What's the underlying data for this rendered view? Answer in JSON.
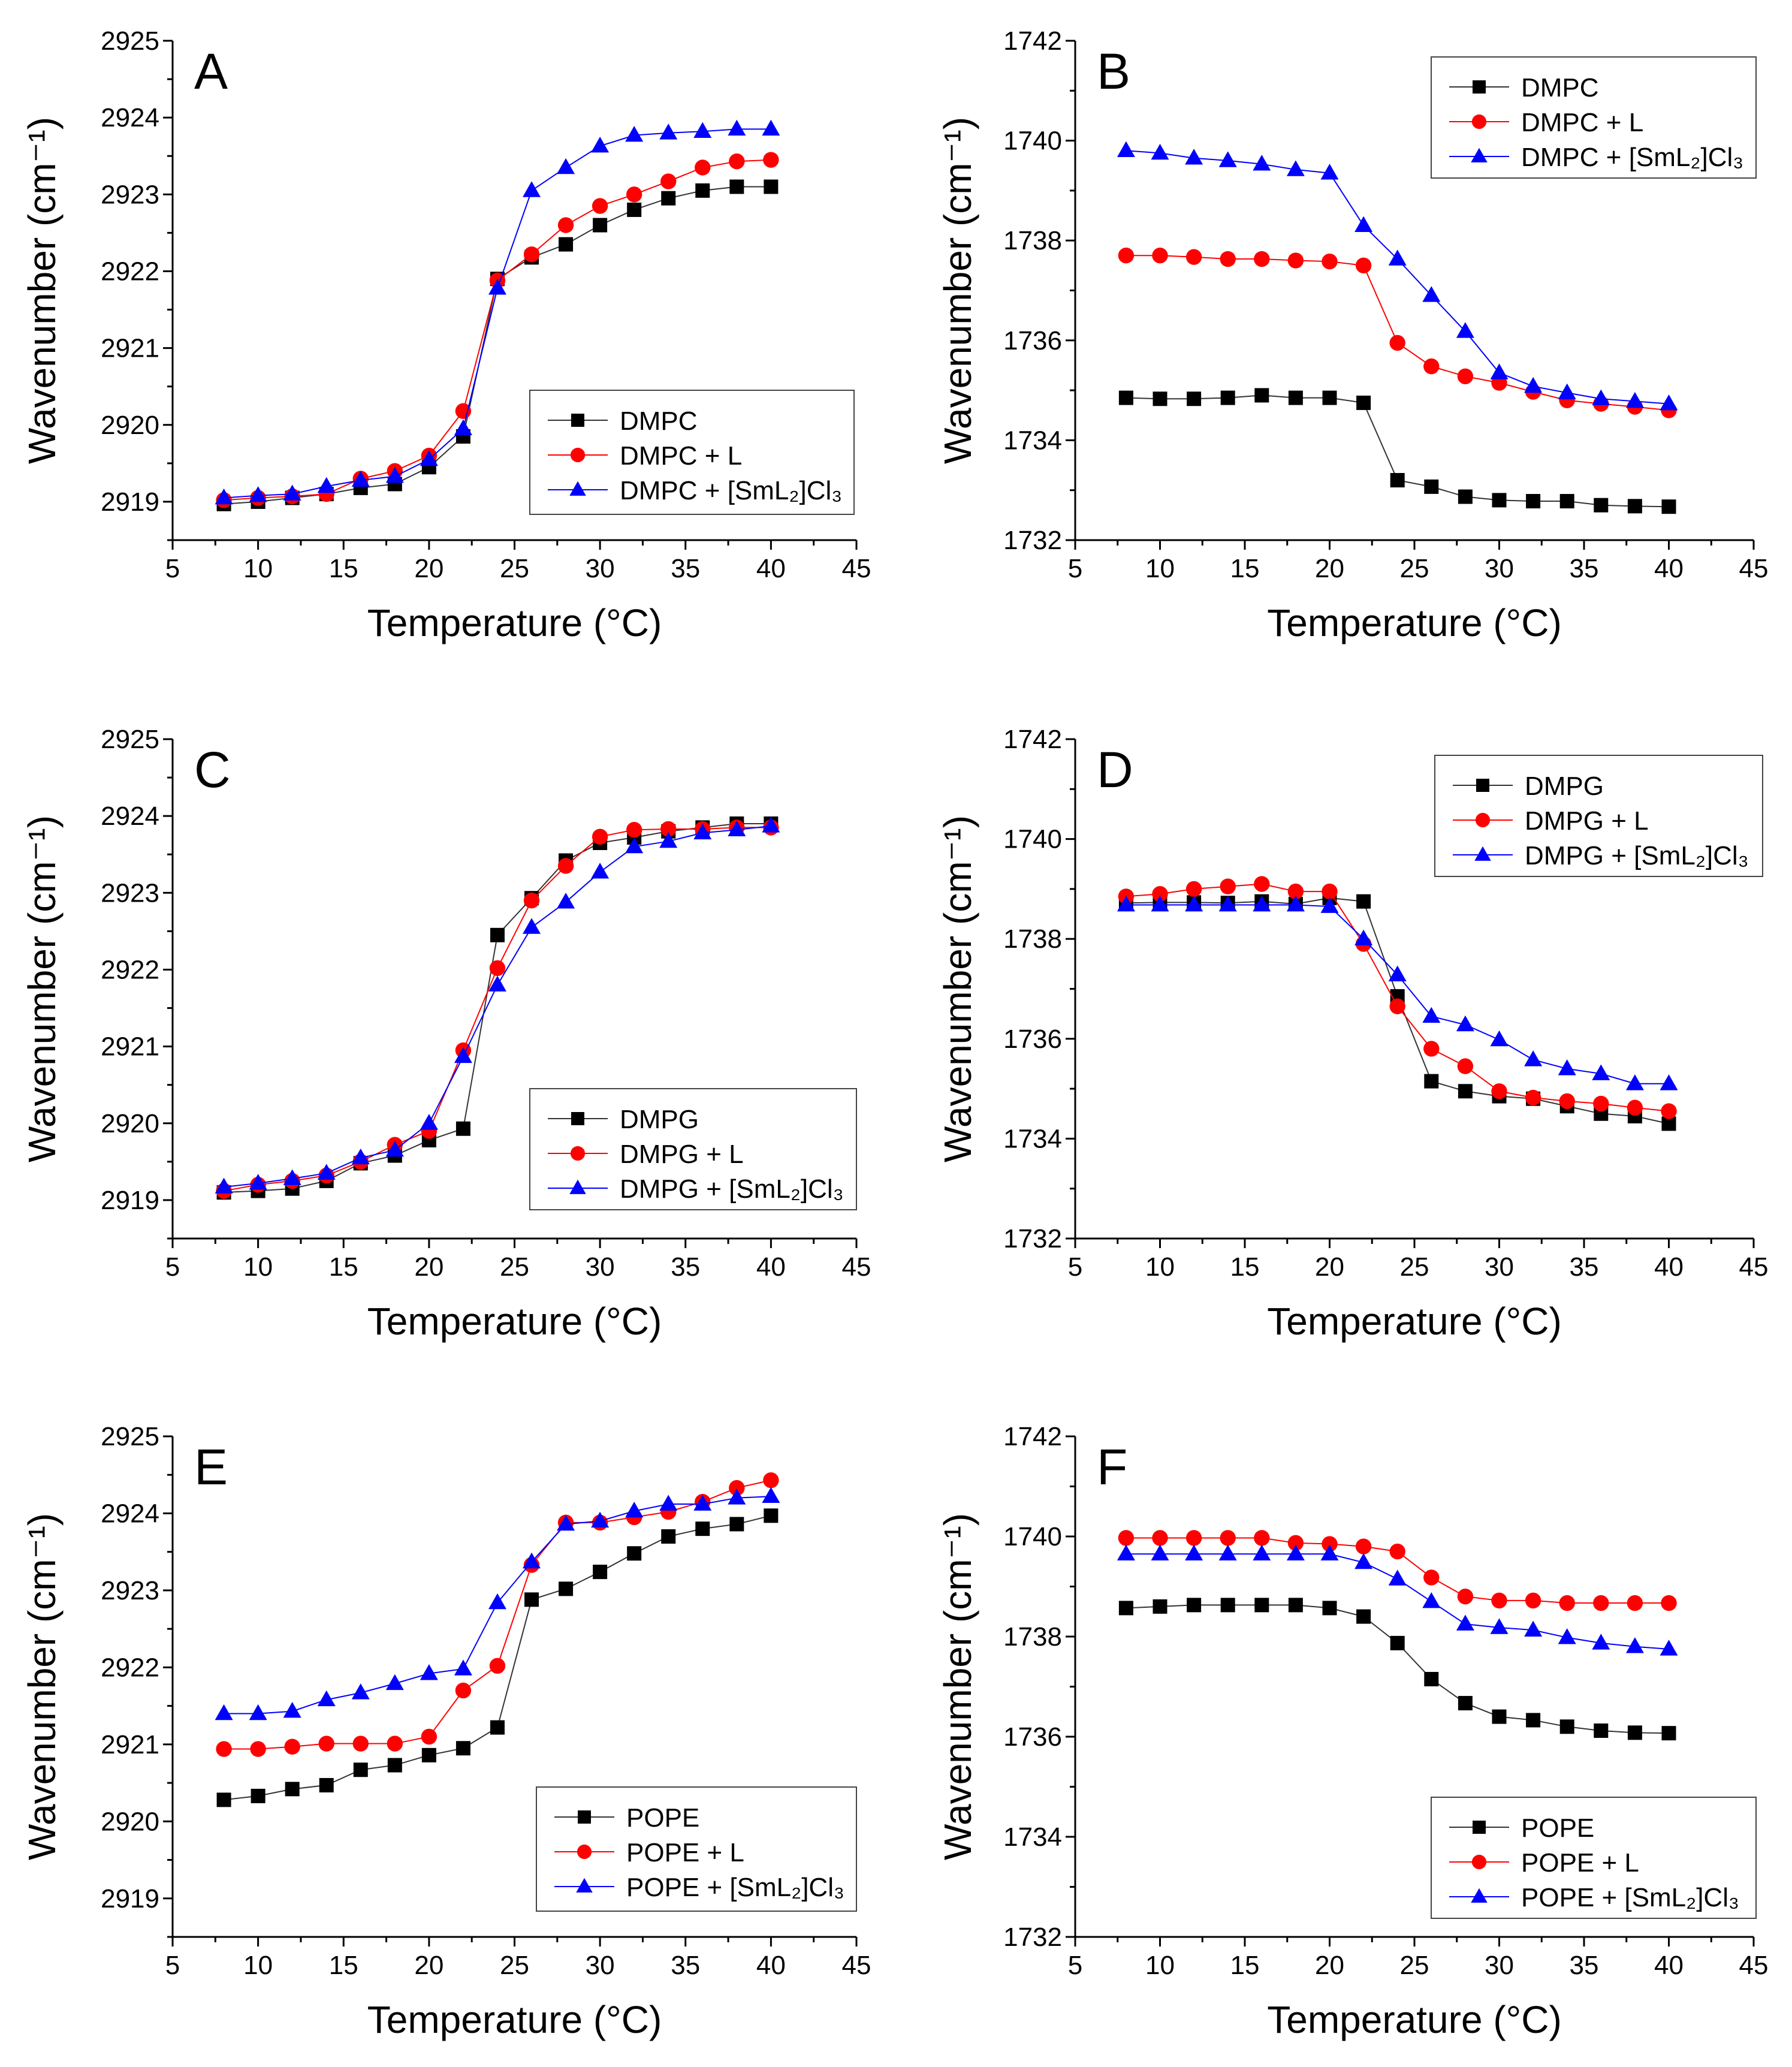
{
  "chart_data": [
    {
      "panel": "A",
      "type": "line",
      "xlabel": "Temperature (°C)",
      "ylabel": "Wavenumber (cm⁻¹)",
      "xlim": [
        5,
        45
      ],
      "xticks": [
        5,
        10,
        15,
        20,
        25,
        30,
        35,
        40,
        45
      ],
      "ylim": [
        2918.5,
        2925
      ],
      "yticks": [
        2919,
        2920,
        2921,
        2922,
        2923,
        2924,
        2925
      ],
      "legend": "bottom-right",
      "grid": false,
      "x": [
        8,
        10,
        12,
        14,
        16,
        18,
        20,
        22,
        24,
        26,
        28,
        30,
        32,
        34,
        36,
        38,
        40
      ],
      "series": [
        {
          "name": "DMPC",
          "color": "#000000",
          "marker": "square",
          "values": [
            2918.97,
            2919.0,
            2919.05,
            2919.1,
            2919.18,
            2919.23,
            2919.45,
            2919.85,
            2921.9,
            2922.18,
            2922.35,
            2922.6,
            2922.8,
            2922.95,
            2923.05,
            2923.1,
            2923.1
          ]
        },
        {
          "name": "DMPC + L",
          "color": "#ff0000",
          "marker": "circle",
          "values": [
            2919.02,
            2919.05,
            2919.07,
            2919.1,
            2919.3,
            2919.4,
            2919.6,
            2920.18,
            2921.88,
            2922.22,
            2922.6,
            2922.85,
            2923.0,
            2923.17,
            2923.35,
            2923.43,
            2923.45
          ]
        },
        {
          "name": "DMPC + [SmL₂]Cl₃",
          "color": "#0000ff",
          "marker": "triangle",
          "values": [
            2919.05,
            2919.08,
            2919.1,
            2919.2,
            2919.28,
            2919.33,
            2919.55,
            2919.95,
            2921.78,
            2923.05,
            2923.35,
            2923.63,
            2923.77,
            2923.8,
            2923.82,
            2923.85,
            2923.85
          ]
        }
      ]
    },
    {
      "panel": "B",
      "type": "line",
      "xlabel": "Temperature (°C)",
      "ylabel": "Wavenumber (cm⁻¹)",
      "xlim": [
        5,
        45
      ],
      "xticks": [
        5,
        10,
        15,
        20,
        25,
        30,
        35,
        40,
        45
      ],
      "ylim": [
        1732,
        1742
      ],
      "yticks": [
        1732,
        1734,
        1736,
        1738,
        1740,
        1742
      ],
      "legend": "top-right",
      "grid": false,
      "x": [
        8,
        10,
        12,
        14,
        16,
        18,
        20,
        22,
        24,
        26,
        28,
        30,
        32,
        34,
        36,
        38,
        40
      ],
      "series": [
        {
          "name": "DMPC",
          "color": "#000000",
          "marker": "square",
          "values": [
            1734.85,
            1734.83,
            1734.83,
            1734.85,
            1734.9,
            1734.85,
            1734.85,
            1734.75,
            1733.2,
            1733.07,
            1732.87,
            1732.8,
            1732.78,
            1732.78,
            1732.7,
            1732.68,
            1732.67
          ]
        },
        {
          "name": "DMPC + L",
          "color": "#ff0000",
          "marker": "circle",
          "values": [
            1737.7,
            1737.7,
            1737.67,
            1737.63,
            1737.63,
            1737.6,
            1737.58,
            1737.5,
            1735.95,
            1735.48,
            1735.28,
            1735.15,
            1734.97,
            1734.8,
            1734.73,
            1734.67,
            1734.6
          ]
        },
        {
          "name": "DMPC + [SmL₂]Cl₃",
          "color": "#0000ff",
          "marker": "triangle",
          "values": [
            1739.8,
            1739.75,
            1739.65,
            1739.6,
            1739.53,
            1739.42,
            1739.35,
            1738.3,
            1737.63,
            1736.9,
            1736.18,
            1735.35,
            1735.08,
            1734.95,
            1734.83,
            1734.78,
            1734.73
          ]
        }
      ]
    },
    {
      "panel": "C",
      "type": "line",
      "xlabel": "Temperature (°C)",
      "ylabel": "Wavenumber (cm⁻¹)",
      "xlim": [
        5,
        45
      ],
      "xticks": [
        5,
        10,
        15,
        20,
        25,
        30,
        35,
        40,
        45
      ],
      "ylim": [
        2918.5,
        2925
      ],
      "yticks": [
        2919,
        2920,
        2921,
        2922,
        2923,
        2924,
        2925
      ],
      "legend": "bottom-right",
      "grid": false,
      "x": [
        8,
        10,
        12,
        14,
        16,
        18,
        20,
        22,
        24,
        26,
        28,
        30,
        32,
        34,
        36,
        38,
        40
      ],
      "series": [
        {
          "name": "DMPG",
          "color": "#000000",
          "marker": "square",
          "values": [
            2919.1,
            2919.12,
            2919.15,
            2919.25,
            2919.48,
            2919.58,
            2919.78,
            2919.93,
            2922.45,
            2922.93,
            2923.42,
            2923.65,
            2923.72,
            2923.8,
            2923.85,
            2923.9,
            2923.9
          ]
        },
        {
          "name": "DMPG + L",
          "color": "#ff0000",
          "marker": "circle",
          "values": [
            2919.12,
            2919.2,
            2919.25,
            2919.32,
            2919.5,
            2919.72,
            2919.9,
            2920.95,
            2922.02,
            2922.9,
            2923.35,
            2923.73,
            2923.82,
            2923.83,
            2923.83,
            2923.85,
            2923.85
          ]
        },
        {
          "name": "DMPG + [SmL₂]Cl₃",
          "color": "#0000ff",
          "marker": "triangle",
          "values": [
            2919.17,
            2919.22,
            2919.28,
            2919.35,
            2919.55,
            2919.65,
            2920.0,
            2920.87,
            2921.8,
            2922.55,
            2922.88,
            2923.27,
            2923.6,
            2923.67,
            2923.78,
            2923.82,
            2923.87
          ]
        }
      ]
    },
    {
      "panel": "D",
      "type": "line",
      "xlabel": "Temperature (°C)",
      "ylabel": "Wavenumber (cm⁻¹)",
      "xlim": [
        5,
        45
      ],
      "xticks": [
        5,
        10,
        15,
        20,
        25,
        30,
        35,
        40,
        45
      ],
      "ylim": [
        1732,
        1742
      ],
      "yticks": [
        1732,
        1734,
        1736,
        1738,
        1740,
        1742
      ],
      "legend": "top-right",
      "grid": false,
      "x": [
        8,
        10,
        12,
        14,
        16,
        18,
        20,
        22,
        24,
        26,
        28,
        30,
        32,
        34,
        36,
        38,
        40
      ],
      "series": [
        {
          "name": "DMPG",
          "color": "#000000",
          "marker": "square",
          "values": [
            1738.72,
            1738.73,
            1738.73,
            1738.72,
            1738.75,
            1738.7,
            1738.82,
            1738.75,
            1736.85,
            1735.15,
            1734.95,
            1734.85,
            1734.8,
            1734.65,
            1734.5,
            1734.45,
            1734.3
          ]
        },
        {
          "name": "DMPG + L",
          "color": "#ff0000",
          "marker": "circle",
          "values": [
            1738.85,
            1738.9,
            1739.0,
            1739.05,
            1739.1,
            1738.95,
            1738.95,
            1737.9,
            1736.65,
            1735.8,
            1735.45,
            1734.95,
            1734.82,
            1734.75,
            1734.7,
            1734.62,
            1734.55
          ]
        },
        {
          "name": "DMPG + [SmL₂]Cl₃",
          "color": "#0000ff",
          "marker": "triangle",
          "values": [
            1738.68,
            1738.68,
            1738.68,
            1738.68,
            1738.68,
            1738.68,
            1738.65,
            1738.0,
            1737.28,
            1736.45,
            1736.28,
            1735.98,
            1735.58,
            1735.4,
            1735.3,
            1735.1,
            1735.1
          ]
        }
      ]
    },
    {
      "panel": "E",
      "type": "line",
      "xlabel": "Temperature (°C)",
      "ylabel": "Wavenumber (cm⁻¹)",
      "xlim": [
        5,
        45
      ],
      "xticks": [
        5,
        10,
        15,
        20,
        25,
        30,
        35,
        40,
        45
      ],
      "ylim": [
        2918.5,
        2925
      ],
      "yticks": [
        2919,
        2920,
        2921,
        2922,
        2923,
        2924,
        2925
      ],
      "legend": "bottom-right",
      "grid": false,
      "x": [
        8,
        10,
        12,
        14,
        16,
        18,
        20,
        22,
        24,
        26,
        28,
        30,
        32,
        34,
        36,
        38,
        40
      ],
      "series": [
        {
          "name": "POPE",
          "color": "#000000",
          "marker": "square",
          "values": [
            2920.28,
            2920.33,
            2920.42,
            2920.47,
            2920.67,
            2920.73,
            2920.86,
            2920.95,
            2921.22,
            2922.88,
            2923.02,
            2923.24,
            2923.48,
            2923.7,
            2923.8,
            2923.86,
            2923.97
          ]
        },
        {
          "name": "POPE + L",
          "color": "#ff0000",
          "marker": "circle",
          "values": [
            2920.94,
            2920.94,
            2920.97,
            2921.01,
            2921.01,
            2921.01,
            2921.1,
            2921.7,
            2922.02,
            2923.33,
            2923.88,
            2923.88,
            2923.95,
            2924.02,
            2924.15,
            2924.33,
            2924.43
          ]
        },
        {
          "name": "POPE + [SmL₂]Cl₃",
          "color": "#0000ff",
          "marker": "triangle",
          "values": [
            2921.4,
            2921.4,
            2921.43,
            2921.58,
            2921.67,
            2921.79,
            2921.92,
            2921.98,
            2922.84,
            2923.37,
            2923.86,
            2923.9,
            2924.03,
            2924.12,
            2924.12,
            2924.2,
            2924.22
          ]
        }
      ]
    },
    {
      "panel": "F",
      "type": "line",
      "xlabel": "Temperature (°C)",
      "ylabel": "Wavenumber (cm⁻¹)",
      "xlim": [
        5,
        45
      ],
      "xticks": [
        5,
        10,
        15,
        20,
        25,
        30,
        35,
        40,
        45
      ],
      "ylim": [
        1732,
        1742
      ],
      "yticks": [
        1732,
        1734,
        1736,
        1738,
        1740,
        1742
      ],
      "legend": "bottom-right",
      "grid": false,
      "x": [
        8,
        10,
        12,
        14,
        16,
        18,
        20,
        22,
        24,
        26,
        28,
        30,
        32,
        34,
        36,
        38,
        40
      ],
      "series": [
        {
          "name": "POPE",
          "color": "#000000",
          "marker": "square",
          "values": [
            1738.57,
            1738.6,
            1738.63,
            1738.63,
            1738.63,
            1738.63,
            1738.57,
            1738.4,
            1737.87,
            1737.15,
            1736.67,
            1736.4,
            1736.33,
            1736.2,
            1736.12,
            1736.08,
            1736.07
          ]
        },
        {
          "name": "POPE + L",
          "color": "#ff0000",
          "marker": "circle",
          "values": [
            1739.97,
            1739.97,
            1739.97,
            1739.97,
            1739.97,
            1739.87,
            1739.85,
            1739.8,
            1739.7,
            1739.18,
            1738.8,
            1738.72,
            1738.72,
            1738.67,
            1738.67,
            1738.67,
            1738.67
          ]
        },
        {
          "name": "POPE + [SmL₂]Cl₃",
          "color": "#0000ff",
          "marker": "triangle",
          "values": [
            1739.65,
            1739.65,
            1739.65,
            1739.65,
            1739.65,
            1739.65,
            1739.65,
            1739.48,
            1739.15,
            1738.7,
            1738.25,
            1738.18,
            1738.13,
            1737.98,
            1737.87,
            1737.8,
            1737.75
          ]
        }
      ]
    }
  ]
}
